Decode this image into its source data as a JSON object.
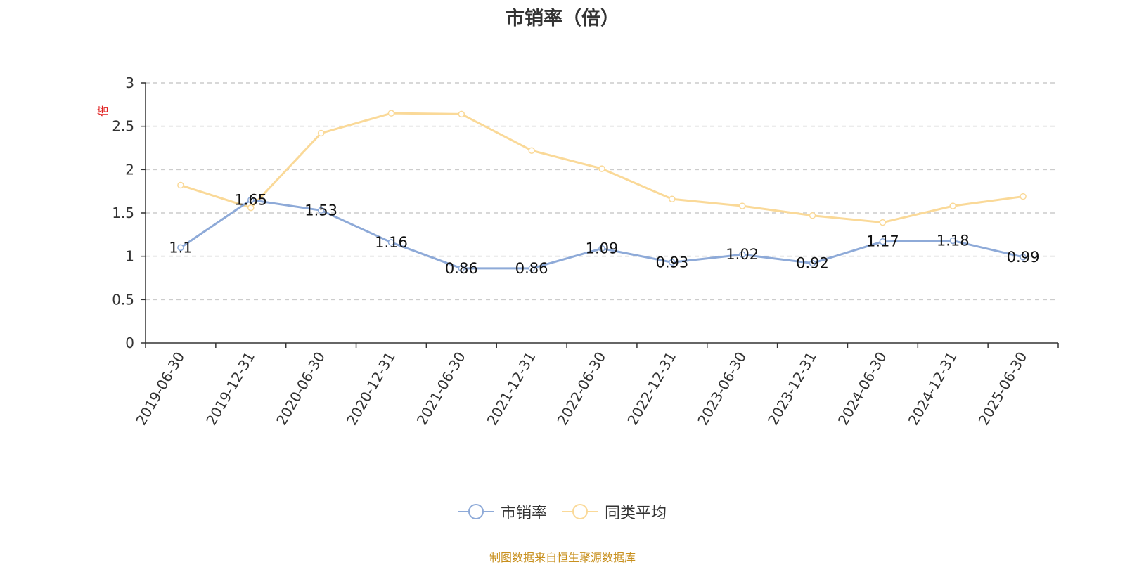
{
  "chart_data": {
    "type": "line",
    "title": "市销率（倍）",
    "y_unit": "倍",
    "ylim": [
      0,
      3
    ],
    "y_ticks": [
      0,
      0.5,
      1,
      1.5,
      2,
      2.5,
      3
    ],
    "categories": [
      "2019-06-30",
      "2019-12-31",
      "2020-06-30",
      "2020-12-31",
      "2021-06-30",
      "2021-12-31",
      "2022-06-30",
      "2022-12-31",
      "2023-06-30",
      "2023-12-31",
      "2024-06-30",
      "2024-12-31",
      "2025-06-30"
    ],
    "series": [
      {
        "name": "市销率",
        "color": "#8eaad8",
        "values": [
          1.1,
          1.65,
          1.53,
          1.16,
          0.86,
          0.86,
          1.09,
          0.93,
          1.02,
          0.92,
          1.17,
          1.18,
          0.99
        ],
        "show_labels": true
      },
      {
        "name": "同类平均",
        "color": "#fad998",
        "values": [
          1.82,
          1.56,
          2.42,
          2.65,
          2.64,
          2.22,
          2.01,
          1.66,
          1.58,
          1.47,
          1.39,
          1.58,
          1.69
        ],
        "show_labels": false
      }
    ],
    "grid": true,
    "legend_position": "bottom"
  },
  "source_note": "制图数据来自恒生聚源数据库"
}
